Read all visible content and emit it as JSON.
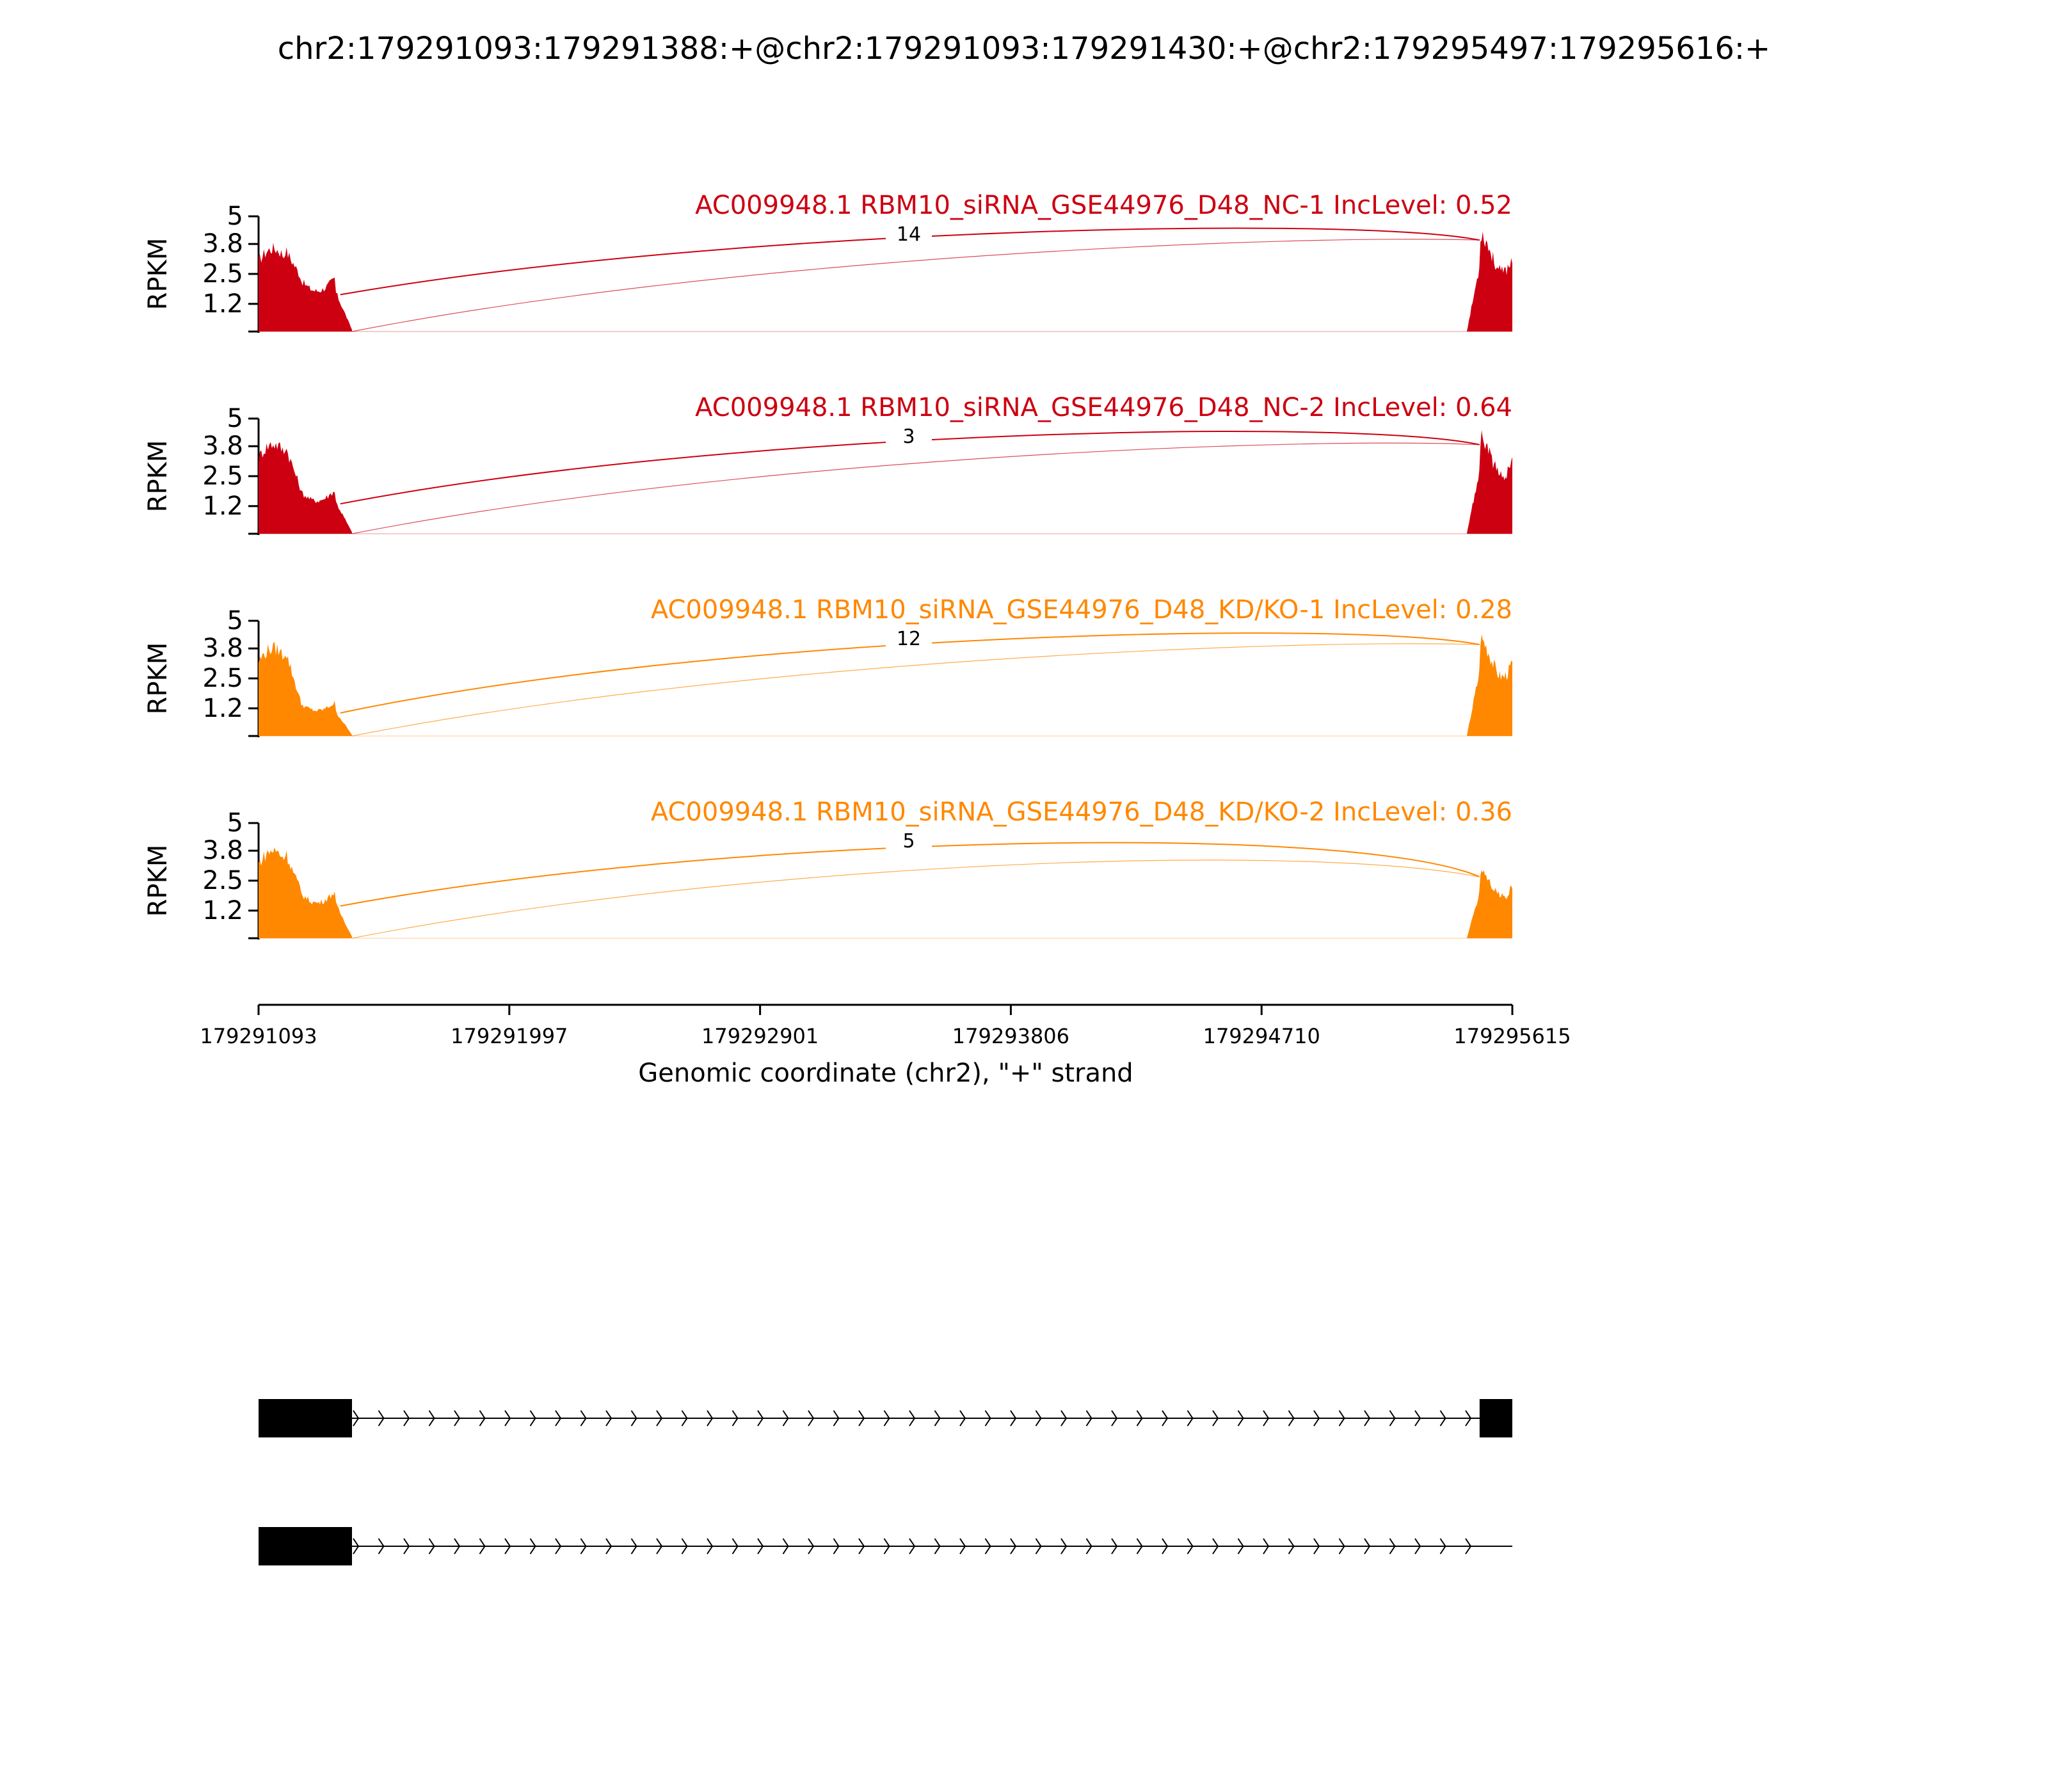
{
  "title": "chr2:179291093:179291388:+@chr2:179291093:179291430:+@chr2:179295497:179295616:+",
  "chart_data": {
    "type": "area",
    "x_range": [
      179291093,
      179295615
    ],
    "x_ticks": [
      "179291093",
      "179291997",
      "179292901",
      "179293806",
      "179294710",
      "179295615"
    ],
    "xlabel": "Genomic coordinate (chr2), \"+\" strand",
    "ylabel": "RPKM",
    "ylim": [
      0,
      5
    ],
    "y_ticks": [
      "5",
      "3.8",
      "2.5",
      "1.2"
    ],
    "series": [
      {
        "name": "AC009948.1 RBM10_siRNA_GSE44976_D48_NC-1 IncLevel: 0.52",
        "color": "#cc0011",
        "junction_count": "14",
        "exon1_peak": 3.6,
        "exon1_tail": 1.6,
        "exon2_peak": 4.3
      },
      {
        "name": "AC009948.1 RBM10_siRNA_GSE44976_D48_NC-2 IncLevel: 0.64",
        "color": "#cc0011",
        "junction_count": "3",
        "exon1_peak": 3.9,
        "exon1_tail": 1.3,
        "exon2_peak": 4.2
      },
      {
        "name": "AC009948.1 RBM10_siRNA_GSE44976_D48_KD/KO-1 IncLevel: 0.28",
        "color": "#ff8800",
        "junction_count": "12",
        "exon1_peak": 3.8,
        "exon1_tail": 1.0,
        "exon2_peak": 4.3
      },
      {
        "name": "AC009948.1 RBM10_siRNA_GSE44976_D48_KD/KO-2 IncLevel: 0.36",
        "color": "#ff8800",
        "junction_count": "5",
        "exon1_peak": 3.8,
        "exon1_tail": 1.4,
        "exon2_peak": 3.0
      }
    ],
    "isoforms": [
      {
        "exons": [
          [
            179291093,
            179291430
          ],
          [
            179295497,
            179295615
          ]
        ]
      },
      {
        "exons": [
          [
            179291093,
            179291430
          ]
        ]
      }
    ]
  }
}
